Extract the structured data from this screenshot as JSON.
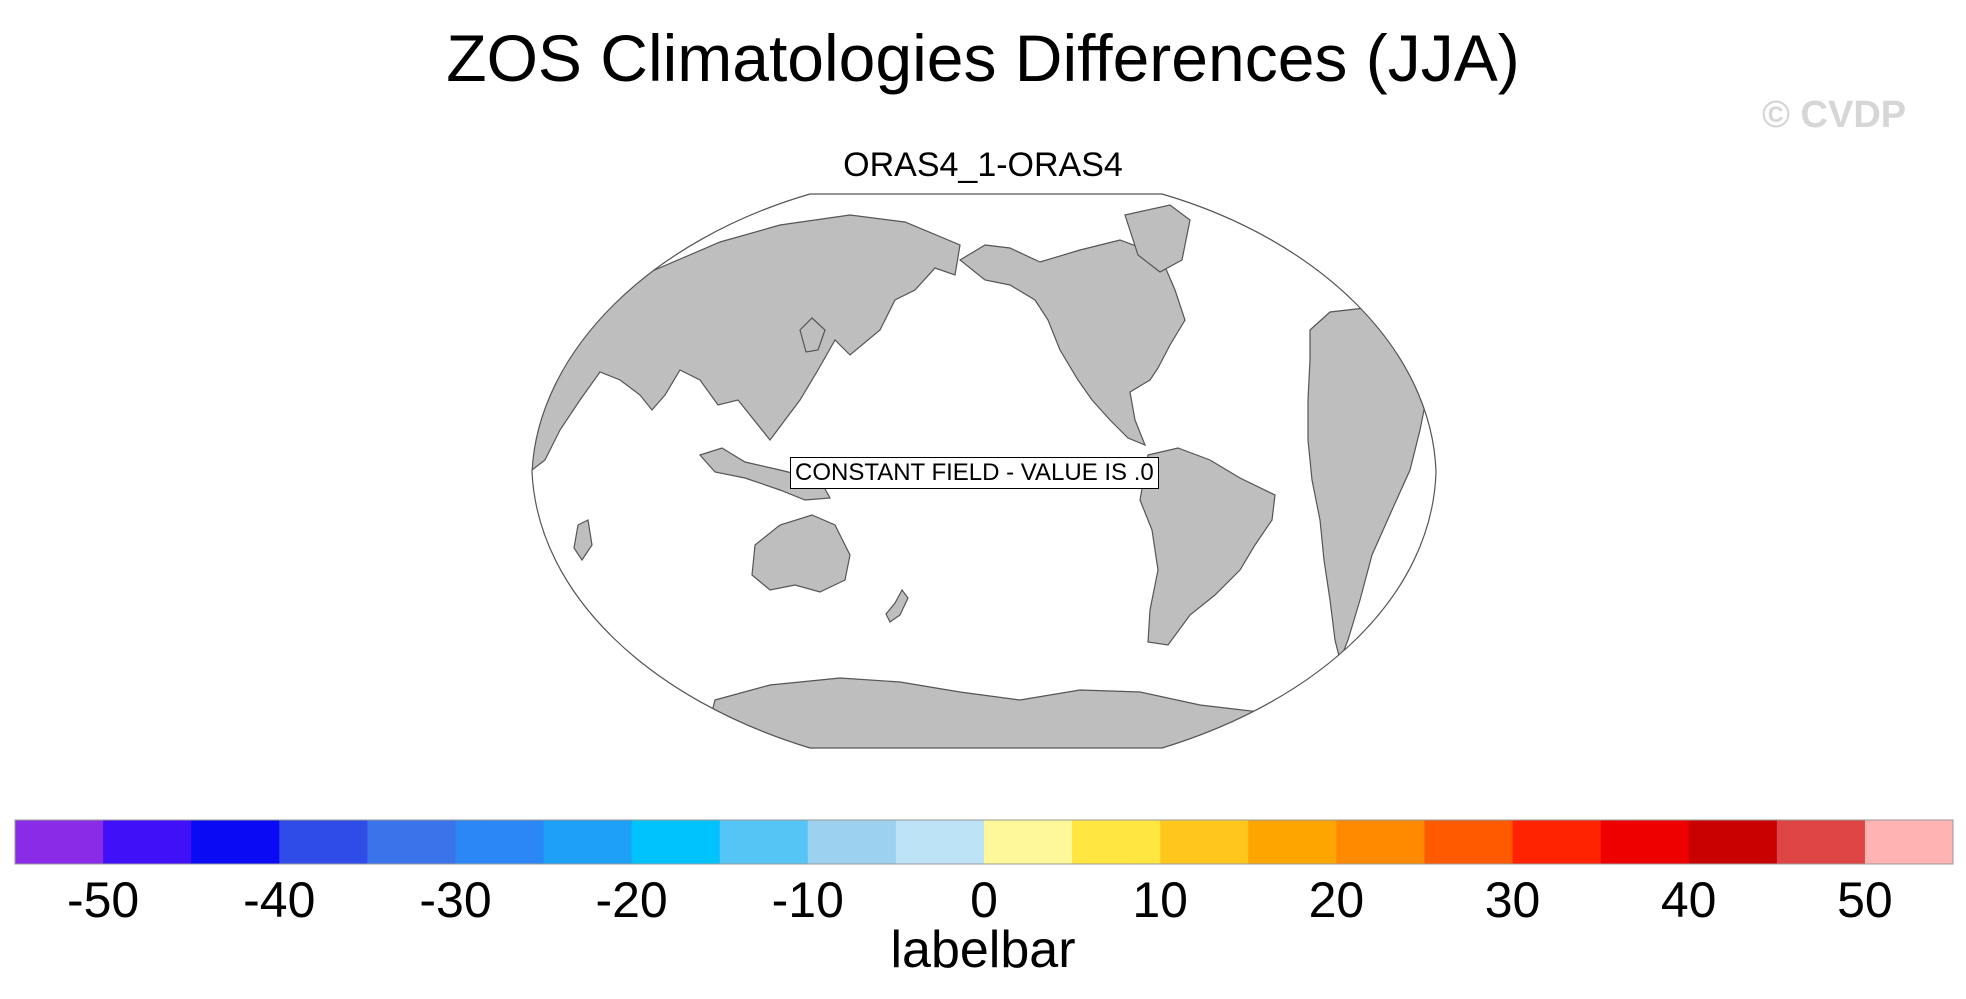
{
  "title": "ZOS Climatologies Differences (JJA)",
  "watermark": "© CVDP",
  "panel": {
    "subtitle": "ORAS4_1-ORAS4",
    "message": "CONSTANT FIELD - VALUE IS .0",
    "colors": {
      "land": "#bebebe",
      "ocean": "#ffffff",
      "outline": "#555555"
    }
  },
  "labelbar": {
    "title": "labelbar",
    "min": -55,
    "max": 55,
    "tick_values": [
      -50,
      -40,
      -30,
      -20,
      -10,
      0,
      10,
      20,
      30,
      40,
      50
    ],
    "tick_labels": [
      "-50",
      "-40",
      "-30",
      "-20",
      "-10",
      "0",
      "10",
      "20",
      "30",
      "40",
      "50"
    ],
    "colors": [
      "#8a2be8",
      "#4010f8",
      "#0a0af5",
      "#2f4be8",
      "#3b73eb",
      "#2b87f6",
      "#1fa0f8",
      "#00c2fc",
      "#55c5f5",
      "#9cd2f0",
      "#bde3f6",
      "#fff89a",
      "#ffe640",
      "#ffc71c",
      "#ffa500",
      "#ff8a00",
      "#ff5a00",
      "#ff2200",
      "#ee0000",
      "#c80000",
      "#de4444",
      "#ffb3b3"
    ]
  }
}
